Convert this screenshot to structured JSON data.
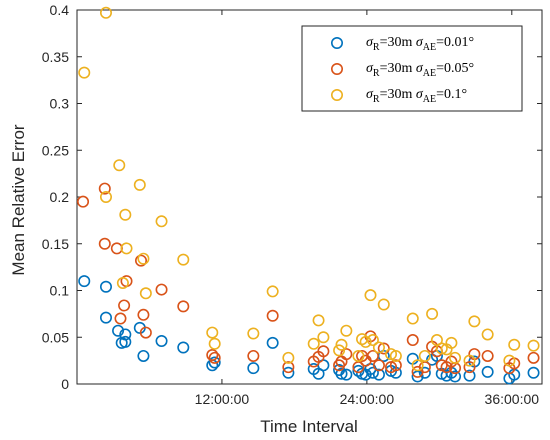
{
  "chart_data": {
    "type": "scatter",
    "title": "",
    "xlabel": "Time Interval",
    "ylabel": "Mean Relative Error",
    "x_unit": "hours",
    "xlim": [
      0,
      38.5
    ],
    "ylim": [
      0,
      0.4
    ],
    "x_ticks": [
      {
        "value": 12,
        "label": "12:00:00"
      },
      {
        "value": 24,
        "label": "24:00:00"
      },
      {
        "value": 36,
        "label": "36:00:00"
      }
    ],
    "y_ticks": [
      {
        "value": 0,
        "label": "0"
      },
      {
        "value": 0.05,
        "label": "0.05"
      },
      {
        "value": 0.1,
        "label": "0.1"
      },
      {
        "value": 0.15,
        "label": "0.15"
      },
      {
        "value": 0.2,
        "label": "0.2"
      },
      {
        "value": 0.25,
        "label": "0.25"
      },
      {
        "value": 0.3,
        "label": "0.3"
      },
      {
        "value": 0.35,
        "label": "0.35"
      },
      {
        "value": 0.4,
        "label": "0.4"
      }
    ],
    "grid": false,
    "legend_position": "top-right",
    "marker": "open-circle",
    "series": [
      {
        "legend_parts": {
          "sigma_r": "R",
          "r_value": "=30m ",
          "sigma_ae": "AE",
          "ae_value": "=0.01°"
        },
        "color": "#0072BD",
        "points": [
          [
            0.6,
            0.11
          ],
          [
            2.4,
            0.104
          ],
          [
            2.4,
            0.071
          ],
          [
            3.4,
            0.057
          ],
          [
            3.7,
            0.044
          ],
          [
            4.0,
            0.045
          ],
          [
            4.0,
            0.053
          ],
          [
            5.2,
            0.06
          ],
          [
            5.5,
            0.03
          ],
          [
            7.0,
            0.046
          ],
          [
            8.8,
            0.039
          ],
          [
            11.2,
            0.02
          ],
          [
            11.4,
            0.023
          ],
          [
            14.6,
            0.017
          ],
          [
            16.2,
            0.044
          ],
          [
            17.5,
            0.012
          ],
          [
            19.6,
            0.016
          ],
          [
            20.0,
            0.011
          ],
          [
            20.4,
            0.02
          ],
          [
            21.7,
            0.015
          ],
          [
            21.9,
            0.011
          ],
          [
            22.3,
            0.01
          ],
          [
            23.3,
            0.014
          ],
          [
            23.6,
            0.011
          ],
          [
            23.9,
            0.01
          ],
          [
            24.3,
            0.016
          ],
          [
            24.5,
            0.012
          ],
          [
            25.0,
            0.01
          ],
          [
            25.4,
            0.03
          ],
          [
            26.0,
            0.014
          ],
          [
            26.4,
            0.012
          ],
          [
            27.8,
            0.027
          ],
          [
            28.2,
            0.008
          ],
          [
            28.8,
            0.012
          ],
          [
            29.4,
            0.026
          ],
          [
            29.8,
            0.03
          ],
          [
            30.2,
            0.011
          ],
          [
            30.6,
            0.009
          ],
          [
            31.0,
            0.012
          ],
          [
            31.3,
            0.008
          ],
          [
            32.5,
            0.009
          ],
          [
            32.9,
            0.024
          ],
          [
            34.0,
            0.013
          ],
          [
            35.8,
            0.006
          ],
          [
            36.2,
            0.01
          ],
          [
            37.8,
            0.012
          ]
        ]
      },
      {
        "legend_parts": {
          "sigma_r": "R",
          "r_value": "=30m ",
          "sigma_ae": "AE",
          "ae_value": "=0.05°"
        },
        "color": "#D95319",
        "points": [
          [
            0.5,
            0.195
          ],
          [
            2.3,
            0.209
          ],
          [
            2.3,
            0.15
          ],
          [
            3.3,
            0.145
          ],
          [
            3.6,
            0.07
          ],
          [
            3.9,
            0.084
          ],
          [
            4.1,
            0.11
          ],
          [
            5.3,
            0.132
          ],
          [
            5.5,
            0.074
          ],
          [
            5.7,
            0.055
          ],
          [
            7.0,
            0.101
          ],
          [
            8.8,
            0.083
          ],
          [
            11.2,
            0.031
          ],
          [
            11.4,
            0.028
          ],
          [
            14.6,
            0.03
          ],
          [
            16.2,
            0.073
          ],
          [
            17.5,
            0.018
          ],
          [
            19.6,
            0.024
          ],
          [
            20.0,
            0.029
          ],
          [
            20.4,
            0.035
          ],
          [
            21.7,
            0.02
          ],
          [
            21.9,
            0.024
          ],
          [
            22.3,
            0.032
          ],
          [
            23.3,
            0.018
          ],
          [
            23.6,
            0.03
          ],
          [
            23.9,
            0.025
          ],
          [
            24.3,
            0.051
          ],
          [
            24.5,
            0.03
          ],
          [
            25.0,
            0.02
          ],
          [
            25.4,
            0.038
          ],
          [
            26.0,
            0.018
          ],
          [
            26.4,
            0.02
          ],
          [
            27.8,
            0.047
          ],
          [
            28.2,
            0.013
          ],
          [
            28.8,
            0.018
          ],
          [
            29.4,
            0.04
          ],
          [
            29.8,
            0.035
          ],
          [
            30.2,
            0.02
          ],
          [
            30.6,
            0.018
          ],
          [
            31.0,
            0.024
          ],
          [
            31.3,
            0.017
          ],
          [
            32.5,
            0.018
          ],
          [
            32.9,
            0.032
          ],
          [
            34.0,
            0.03
          ],
          [
            35.8,
            0.017
          ],
          [
            36.2,
            0.022
          ],
          [
            37.8,
            0.028
          ]
        ]
      },
      {
        "legend_parts": {
          "sigma_r": "R",
          "r_value": "=30m ",
          "sigma_ae": "AE",
          "ae_value": "=0.1°"
        },
        "color": "#EDB120",
        "points": [
          [
            0.6,
            0.333
          ],
          [
            2.4,
            0.397
          ],
          [
            2.4,
            0.2
          ],
          [
            3.5,
            0.234
          ],
          [
            3.8,
            0.108
          ],
          [
            4.0,
            0.181
          ],
          [
            4.1,
            0.145
          ],
          [
            5.2,
            0.213
          ],
          [
            5.5,
            0.134
          ],
          [
            5.7,
            0.097
          ],
          [
            7.0,
            0.174
          ],
          [
            8.8,
            0.133
          ],
          [
            11.2,
            0.055
          ],
          [
            11.4,
            0.043
          ],
          [
            14.6,
            0.054
          ],
          [
            16.2,
            0.099
          ],
          [
            17.5,
            0.028
          ],
          [
            19.6,
            0.043
          ],
          [
            20.0,
            0.068
          ],
          [
            20.4,
            0.05
          ],
          [
            21.7,
            0.036
          ],
          [
            21.9,
            0.042
          ],
          [
            22.3,
            0.057
          ],
          [
            23.3,
            0.03
          ],
          [
            23.6,
            0.048
          ],
          [
            23.9,
            0.045
          ],
          [
            24.3,
            0.095
          ],
          [
            24.5,
            0.047
          ],
          [
            25.0,
            0.039
          ],
          [
            25.4,
            0.085
          ],
          [
            26.0,
            0.032
          ],
          [
            26.4,
            0.03
          ],
          [
            27.8,
            0.07
          ],
          [
            28.2,
            0.02
          ],
          [
            28.8,
            0.03
          ],
          [
            29.4,
            0.075
          ],
          [
            29.8,
            0.047
          ],
          [
            30.2,
            0.038
          ],
          [
            30.6,
            0.037
          ],
          [
            31.0,
            0.044
          ],
          [
            31.3,
            0.028
          ],
          [
            32.5,
            0.025
          ],
          [
            32.9,
            0.067
          ],
          [
            34.0,
            0.053
          ],
          [
            35.8,
            0.025
          ],
          [
            36.2,
            0.042
          ],
          [
            37.8,
            0.041
          ]
        ]
      }
    ]
  }
}
